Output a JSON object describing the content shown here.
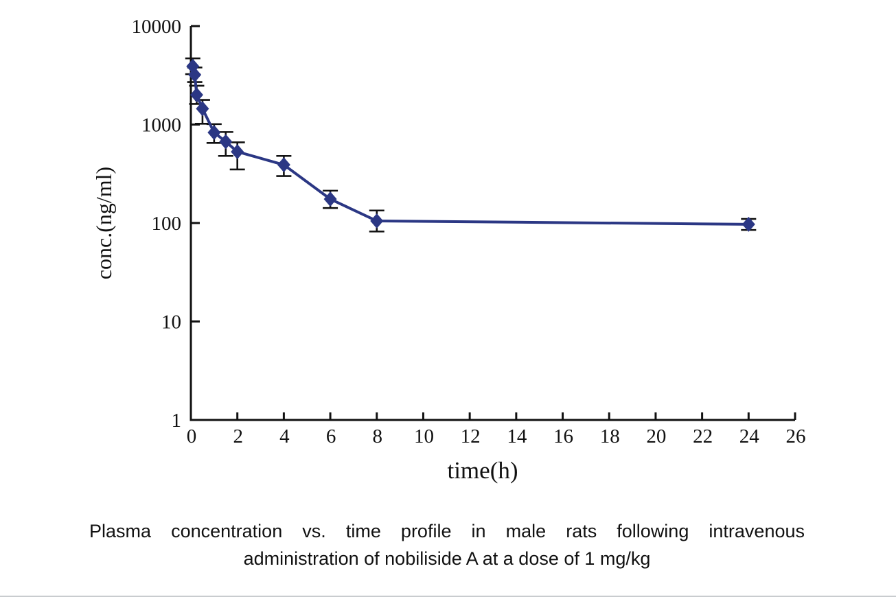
{
  "caption": {
    "line1": "Plasma concentration vs. time profile in male rats following intravenous",
    "line2": "administration of nobiliside A at a dose of 1 mg/kg"
  },
  "chart_data": {
    "type": "line",
    "title": "",
    "xlabel": "time(h)",
    "ylabel": "conc.(ng/ml)",
    "x_scale": "linear",
    "y_scale": "log",
    "xlim": [
      0,
      26
    ],
    "ylim": [
      1,
      10000
    ],
    "x_ticks": [
      0,
      2,
      4,
      6,
      8,
      10,
      12,
      14,
      16,
      18,
      20,
      22,
      24,
      26
    ],
    "y_ticks": [
      1,
      10,
      100,
      1000,
      10000
    ],
    "y_tick_labels": [
      "1",
      "10",
      "100",
      "1000",
      "10000"
    ],
    "grid": false,
    "legend_position": "none",
    "marker": "diamond",
    "line_color": "#2b3784",
    "error_bar_color": "#111111",
    "axis_color": "#111111",
    "series": [
      {
        "x": [
          0.083,
          0.167,
          0.25,
          0.5,
          1,
          1.5,
          2,
          4,
          6,
          8,
          24
        ],
        "y": [
          3900,
          3200,
          2000,
          1450,
          830,
          670,
          530,
          390,
          175,
          105,
          97
        ],
        "y_err_upper": [
          4700,
          3800,
          2480,
          1780,
          1010,
          840,
          660,
          480,
          213,
          134,
          110
        ],
        "y_err_lower": [
          3250,
          2700,
          1620,
          1020,
          650,
          480,
          350,
          300,
          142,
          82,
          85
        ]
      }
    ]
  }
}
